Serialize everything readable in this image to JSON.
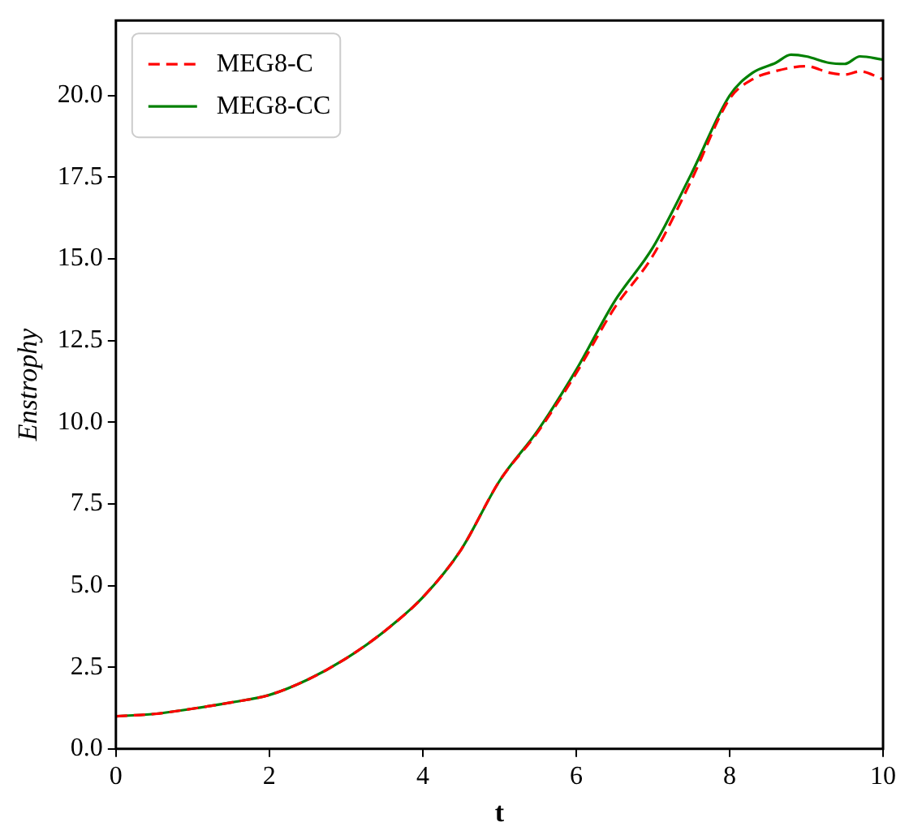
{
  "chart_data": {
    "type": "line",
    "xlabel": "t",
    "ylabel": "Enstrophy",
    "xlim": [
      0,
      10
    ],
    "xticks": [
      0,
      2,
      4,
      6,
      8,
      10
    ],
    "ylim": [
      0,
      22.3
    ],
    "yticks": [
      {
        "value": 0,
        "label": "0.0"
      },
      {
        "value": 2.5,
        "label": "2.5"
      },
      {
        "value": 5,
        "label": "5.0"
      },
      {
        "value": 7.5,
        "label": "7.5"
      },
      {
        "value": 10,
        "label": "10.0"
      },
      {
        "value": 12.5,
        "label": "12.5"
      },
      {
        "value": 15,
        "label": "15.0"
      },
      {
        "value": 17.5,
        "label": "17.5"
      },
      {
        "value": 20,
        "label": "20.0"
      }
    ],
    "grid": false,
    "legend": "top left",
    "marker": "none",
    "series": [
      {
        "name": "MEG8-C",
        "color": "#ff0000",
        "line_style": "dashed",
        "x": [
          0,
          0.5,
          1,
          1.5,
          2,
          2.5,
          3,
          3.5,
          4,
          4.5,
          5,
          5.5,
          6,
          6.5,
          7,
          7.5,
          8,
          8.3,
          8.6,
          9,
          9.3,
          9.5,
          9.7,
          10
        ],
        "values": [
          1.0,
          1.07,
          1.23,
          1.42,
          1.65,
          2.12,
          2.77,
          3.6,
          4.64,
          6.1,
          8.2,
          9.7,
          11.5,
          13.5,
          15.1,
          17.4,
          19.9,
          20.5,
          20.75,
          20.9,
          20.7,
          20.64,
          20.74,
          20.5
        ]
      },
      {
        "name": "MEG8-CC",
        "color": "#008000",
        "line_style": "solid",
        "x": [
          0,
          0.5,
          1,
          1.5,
          2,
          2.5,
          3,
          3.5,
          4,
          4.5,
          5,
          5.5,
          6,
          6.5,
          7,
          7.5,
          8,
          8.3,
          8.6,
          8.8,
          9,
          9.3,
          9.5,
          9.7,
          10
        ],
        "values": [
          1.0,
          1.07,
          1.23,
          1.42,
          1.65,
          2.12,
          2.77,
          3.6,
          4.64,
          6.1,
          8.2,
          9.75,
          11.6,
          13.7,
          15.35,
          17.6,
          20.0,
          20.7,
          21.0,
          21.25,
          21.2,
          21.0,
          20.97,
          21.2,
          21.1
        ]
      }
    ]
  }
}
